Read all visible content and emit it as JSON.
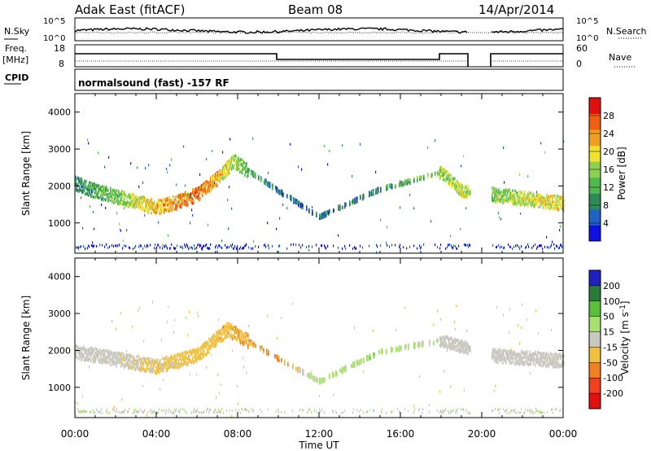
{
  "header": {
    "station": "Adak East (fitACF)",
    "beam": "Beam 08",
    "date": "14/Apr/2014"
  },
  "top_panels": {
    "nsky_label": "N.Sky",
    "nsky_ticks": [
      "10^5",
      "10^0"
    ],
    "nsearch_label": "N.Search",
    "nsearch_ticks": [
      "10^5",
      "10^0"
    ],
    "freq_label": "Freq.",
    "freq_unit": "[MHz]",
    "freq_ticks": [
      "18",
      "8"
    ],
    "nave_label": "Nave",
    "nave_ticks": [
      "60",
      "0"
    ],
    "cpid_label": "CPID",
    "cpid_text": "normalsound (fast) -157 RF"
  },
  "chart_data": [
    {
      "type": "heatmap",
      "quantity": "Power",
      "ylabel": "Slant Range [km]",
      "xlabel": "",
      "xlim": [
        0,
        24
      ],
      "ylim": [
        180,
        4500
      ],
      "x_ticks": [
        "00:00",
        "04:00",
        "08:00",
        "12:00",
        "16:00",
        "20:00",
        "00:00"
      ],
      "y_ticks": [
        1000,
        2000,
        3000,
        4000
      ],
      "colorbar": {
        "label": "Power [dB]",
        "range": [
          0,
          32
        ],
        "ticks": [
          4,
          8,
          12,
          16,
          20,
          24,
          28
        ],
        "colors": [
          "#1010e0",
          "#2060c0",
          "#2e8b57",
          "#4fb84f",
          "#90d050",
          "#f0e030",
          "#f0a020",
          "#f06010",
          "#e01010"
        ]
      },
      "echo_bands": [
        {
          "t": 0.0,
          "range": 2100,
          "value": 8
        },
        {
          "t": 1.0,
          "range": 1900,
          "value": 12
        },
        {
          "t": 2.0,
          "range": 1750,
          "value": 14
        },
        {
          "t": 3.0,
          "range": 1600,
          "value": 18
        },
        {
          "t": 4.0,
          "range": 1450,
          "value": 22
        },
        {
          "t": 5.0,
          "range": 1600,
          "value": 24
        },
        {
          "t": 6.0,
          "range": 1800,
          "value": 26
        },
        {
          "t": 7.0,
          "range": 2250,
          "value": 22
        },
        {
          "t": 7.8,
          "range": 2700,
          "value": 16
        },
        {
          "t": 10.0,
          "range": 1900,
          "value": 6
        },
        {
          "t": 12.0,
          "range": 1200,
          "value": 6
        },
        {
          "t": 15.0,
          "range": 1950,
          "value": 8
        },
        {
          "t": 18.0,
          "range": 2400,
          "value": 16
        },
        {
          "t": 19.0,
          "range": 1900,
          "value": 18
        },
        {
          "t": 20.5,
          "range": 1800,
          "value": 14
        },
        {
          "t": 22.0,
          "range": 1700,
          "value": 18
        },
        {
          "t": 24.0,
          "range": 1550,
          "value": 20
        }
      ]
    },
    {
      "type": "heatmap",
      "quantity": "Velocity",
      "ylabel": "Slant Range [km]",
      "xlabel": "Time UT",
      "xlim": [
        0,
        24
      ],
      "ylim": [
        180,
        4500
      ],
      "x_ticks": [
        "00:00",
        "04:00",
        "08:00",
        "12:00",
        "16:00",
        "20:00",
        "00:00"
      ],
      "y_ticks": [
        1000,
        2000,
        3000,
        4000
      ],
      "colorbar": {
        "label": "Velocity [m s^-1]",
        "ticks": [
          200,
          100,
          50,
          15,
          -15,
          -50,
          -100,
          -200
        ],
        "colors": [
          "#2020c0",
          "#2a7a3a",
          "#5cbf3c",
          "#a8e070",
          "#c8c8c0",
          "#f0c040",
          "#f08020",
          "#f04020",
          "#e01010"
        ]
      },
      "echo_bands": [
        {
          "t": 0.0,
          "range": 2000,
          "value": 0
        },
        {
          "t": 2.0,
          "range": 1800,
          "value": 0
        },
        {
          "t": 4.0,
          "range": 1600,
          "value": -20
        },
        {
          "t": 6.0,
          "range": 1900,
          "value": -30
        },
        {
          "t": 7.5,
          "range": 2600,
          "value": -40
        },
        {
          "t": 10.0,
          "range": 1800,
          "value": -60
        },
        {
          "t": 12.0,
          "range": 1200,
          "value": 30
        },
        {
          "t": 15.0,
          "range": 2000,
          "value": 40
        },
        {
          "t": 18.0,
          "range": 2300,
          "value": 0
        },
        {
          "t": 20.5,
          "range": 1900,
          "value": 0
        },
        {
          "t": 24.0,
          "range": 1750,
          "value": 0
        }
      ]
    }
  ]
}
